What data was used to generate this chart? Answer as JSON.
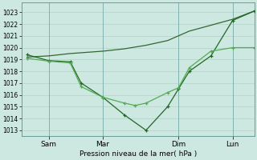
{
  "title": "Pression niveau de la mer( hPa )",
  "ylabel_ticks": [
    1013,
    1014,
    1015,
    1016,
    1017,
    1018,
    1019,
    1020,
    1021,
    1022,
    1023
  ],
  "ylim": [
    1012.5,
    1023.8
  ],
  "x_tick_labels": [
    "Sam",
    "Mar",
    "Dim",
    "Lun"
  ],
  "x_tick_positions": [
    2,
    7,
    14,
    19
  ],
  "xlim": [
    -0.5,
    21
  ],
  "background_color": "#cde8e0",
  "grid_color": "#aaccc4",
  "line_color_1": "#336633",
  "line_color_2": "#226622",
  "line_color_3": "#55aa55",
  "series_1_x": [
    0,
    2,
    4,
    7,
    9,
    11,
    13,
    14,
    15,
    17,
    19,
    21
  ],
  "series_1_y": [
    1019.2,
    1019.3,
    1019.5,
    1019.7,
    1019.9,
    1020.2,
    1020.6,
    1021.0,
    1021.4,
    1021.9,
    1022.4,
    1023.1
  ],
  "series_2_x": [
    0,
    2,
    4,
    5,
    7,
    9,
    11,
    13,
    14,
    15,
    17,
    19,
    21
  ],
  "series_2_y": [
    1019.4,
    1018.9,
    1018.8,
    1017.0,
    1015.8,
    1014.3,
    1013.0,
    1015.0,
    1016.5,
    1018.0,
    1019.3,
    1022.3,
    1023.1
  ],
  "series_3_x": [
    0,
    2,
    4,
    5,
    7,
    9,
    10,
    11,
    13,
    14,
    15,
    17,
    19,
    21
  ],
  "series_3_y": [
    1019.1,
    1018.85,
    1018.7,
    1016.7,
    1015.8,
    1015.3,
    1015.1,
    1015.3,
    1016.2,
    1016.6,
    1018.3,
    1019.7,
    1020.0,
    1020.0
  ],
  "figsize": [
    3.2,
    2.0
  ],
  "dpi": 100
}
